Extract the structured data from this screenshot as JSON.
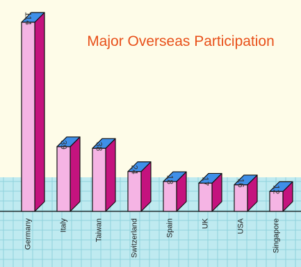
{
  "chart_data": {
    "type": "bar",
    "title": "Major Overseas Participation",
    "categories": [
      "Germany",
      "Italy",
      "Taiwan",
      "Switzerland",
      "Spain",
      "UK",
      "USA",
      "Singapore"
    ],
    "values": [
      114,
      39,
      38,
      24,
      18,
      17,
      16,
      12
    ],
    "ylim": [
      0,
      114
    ],
    "grid": true,
    "legend": "none"
  },
  "colors": {
    "background": "#fefce8",
    "grid_area": "#bfeaf0",
    "grid_lines": "#8fd2dc",
    "bar_front": "#f5b4e4",
    "bar_side": "#c4137e",
    "bar_top": "#3f8fe8",
    "outline": "#111111",
    "title": "#e8501a"
  }
}
